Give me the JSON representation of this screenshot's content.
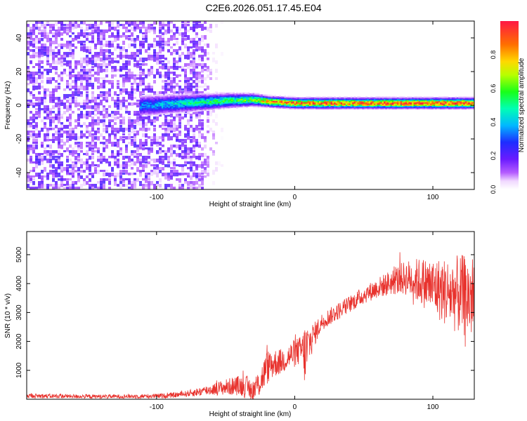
{
  "title": "C2E6.2026.051.17.45.E04",
  "chart_data": [
    {
      "type": "heatmap",
      "xlabel": "Height of straight line (km)",
      "ylabel": "Frequency (Hz)",
      "xlim": [
        -194,
        130
      ],
      "ylim": [
        -50,
        50
      ],
      "x_ticks": [
        -100,
        0,
        100
      ],
      "x_tick_labels": [
        "-100",
        "0",
        "100"
      ],
      "y_ticks": [
        -40,
        -20,
        0,
        20,
        40
      ],
      "y_tick_labels": [
        "-40",
        "-20",
        "0",
        "20",
        "40"
      ],
      "colorbar": {
        "label": "Normalized spectral amplitude",
        "range": [
          0,
          1
        ],
        "ticks": [
          0.0,
          0.2,
          0.4,
          0.6,
          0.8
        ],
        "tick_labels": [
          "0.0",
          "0.2",
          "0.4",
          "0.6",
          "0.8"
        ],
        "colormap": [
          "#ffffff",
          "#cc99ff",
          "#6a1bff",
          "#1e2dff",
          "#00c8ff",
          "#00ff7f",
          "#7fff00",
          "#ffd800",
          "#ff5a00",
          "#ff1744"
        ]
      },
      "noise_region": {
        "x_range": [
          -194,
          -72
        ],
        "frequency_range": [
          -50,
          50
        ],
        "amplitude": 0.15
      },
      "signal_band": [
        {
          "x": -110,
          "center": -0.5,
          "halfwidth": 5.0,
          "peak": 0.35
        },
        {
          "x": -90,
          "center": 0.5,
          "halfwidth": 4.5,
          "peak": 0.42
        },
        {
          "x": -70,
          "center": 1.5,
          "halfwidth": 4.0,
          "peak": 0.5
        },
        {
          "x": -50,
          "center": 2.5,
          "halfwidth": 3.5,
          "peak": 0.55
        },
        {
          "x": -30,
          "center": 3.0,
          "halfwidth": 3.0,
          "peak": 0.6
        },
        {
          "x": -20,
          "center": 2.0,
          "halfwidth": 2.5,
          "peak": 0.85
        },
        {
          "x": 0,
          "center": 1.0,
          "halfwidth": 2.5,
          "peak": 0.9
        },
        {
          "x": 20,
          "center": 1.0,
          "halfwidth": 2.5,
          "peak": 0.9
        },
        {
          "x": 40,
          "center": 1.0,
          "halfwidth": 2.5,
          "peak": 0.9
        },
        {
          "x": 60,
          "center": 1.0,
          "halfwidth": 2.5,
          "peak": 0.95
        },
        {
          "x": 80,
          "center": 1.0,
          "halfwidth": 2.5,
          "peak": 0.95
        },
        {
          "x": 100,
          "center": 1.0,
          "halfwidth": 2.5,
          "peak": 0.95
        },
        {
          "x": 130,
          "center": 1.0,
          "halfwidth": 2.5,
          "peak": 0.95
        }
      ]
    },
    {
      "type": "line",
      "xlabel": "Height of straight line (km)",
      "ylabel": "SNR (10 * v/v)",
      "xlim": [
        -194,
        130
      ],
      "ylim": [
        0,
        5800
      ],
      "x_ticks": [
        -100,
        0,
        100
      ],
      "x_tick_labels": [
        "-100",
        "0",
        "100"
      ],
      "y_ticks": [
        1000,
        2000,
        3000,
        4000,
        5000
      ],
      "y_tick_labels": [
        "1000",
        "2000",
        "3000",
        "4000",
        "5000"
      ],
      "color": "#e8322d",
      "series": [
        {
          "x": [
            -194,
            -180,
            -160,
            -140,
            -120,
            -100,
            -90,
            -80,
            -70,
            -60,
            -50,
            -40,
            -35,
            -30,
            -25,
            -20,
            -15,
            -10,
            -5,
            0,
            5,
            8,
            10,
            15,
            20,
            30,
            40,
            50,
            60,
            70,
            80,
            90,
            100,
            110,
            120,
            130
          ],
          "y": [
            120,
            110,
            100,
            95,
            100,
            110,
            130,
            180,
            250,
            340,
            420,
            480,
            420,
            300,
            600,
            1100,
            1250,
            1300,
            1450,
            1600,
            1700,
            1500,
            1900,
            2300,
            2700,
            3000,
            3300,
            3600,
            3850,
            4050,
            4200,
            4100,
            3900,
            3700,
            3600,
            3500
          ],
          "spread": [
            80,
            80,
            70,
            70,
            70,
            80,
            90,
            100,
            150,
            200,
            280,
            350,
            400,
            400,
            500,
            600,
            500,
            450,
            450,
            500,
            500,
            1300,
            700,
            400,
            300,
            300,
            300,
            300,
            350,
            450,
            600,
            800,
            1000,
            1200,
            1400,
            1500
          ]
        }
      ]
    }
  ]
}
